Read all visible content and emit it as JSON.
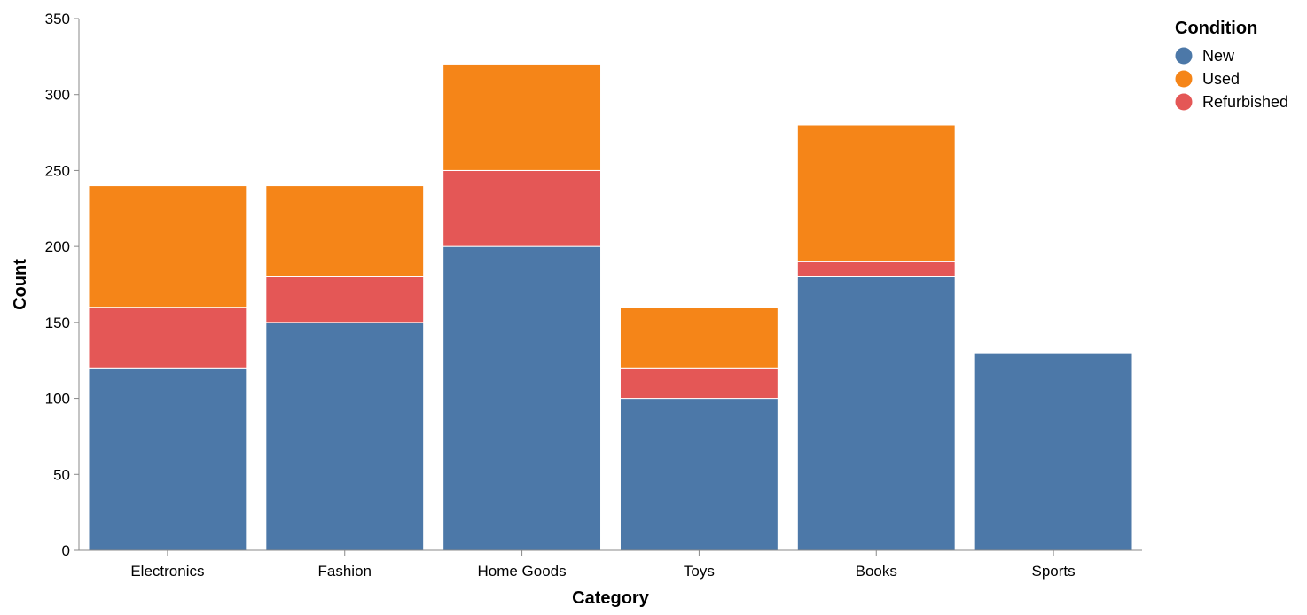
{
  "chart_data": {
    "type": "bar",
    "stacked": true,
    "title": "",
    "xlabel": "Category",
    "ylabel": "Count",
    "ylim": [
      0,
      350
    ],
    "yticks": [
      0,
      50,
      100,
      150,
      200,
      250,
      300,
      350
    ],
    "grid": false,
    "categories": [
      "Electronics",
      "Fashion",
      "Home Goods",
      "Toys",
      "Books",
      "Sports"
    ],
    "stack_order": [
      "New",
      "Refurbished",
      "Used"
    ],
    "series": [
      {
        "name": "New",
        "color": "#4c78a8",
        "values": [
          120,
          150,
          200,
          100,
          180,
          130
        ]
      },
      {
        "name": "Used",
        "color": "#f58518",
        "values": [
          80,
          60,
          70,
          40,
          90,
          0
        ]
      },
      {
        "name": "Refurbished",
        "color": "#e45756",
        "values": [
          40,
          30,
          50,
          20,
          10,
          0
        ]
      }
    ],
    "legend": {
      "title": "Condition",
      "position": "top-right",
      "entries": [
        "New",
        "Used",
        "Refurbished"
      ]
    }
  }
}
